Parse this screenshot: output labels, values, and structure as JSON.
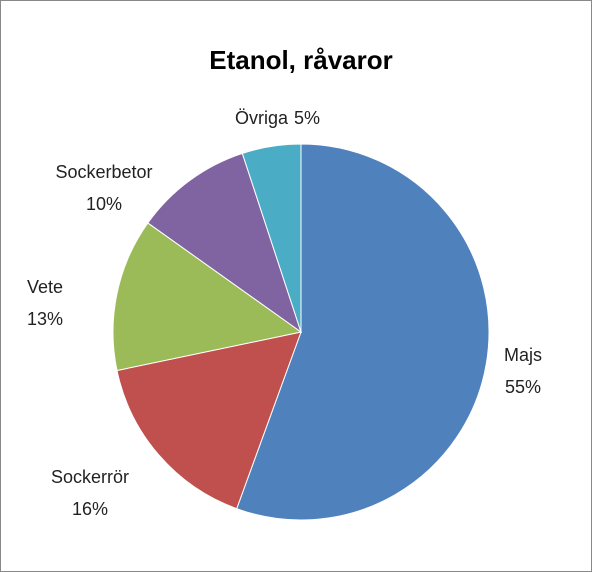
{
  "chart_data": {
    "type": "pie",
    "title": "Etanol, råvaror",
    "categories": [
      "Majs",
      "Sockerrör",
      "Vete",
      "Sockerbetor",
      "Övriga"
    ],
    "values": [
      55,
      16,
      13,
      10,
      5
    ],
    "value_labels": [
      "55%",
      "16%",
      "13%",
      "10%",
      "5%"
    ],
    "colors": [
      "#4f81bd",
      "#c0504d",
      "#9bbb59",
      "#8064a2",
      "#4bacc6"
    ]
  }
}
